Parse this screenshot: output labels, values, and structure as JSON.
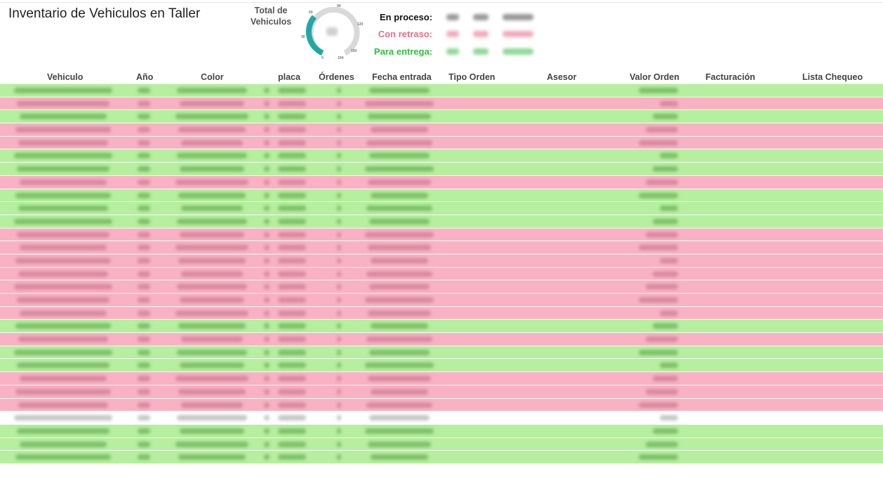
{
  "title": "Inventario de Vehiculos en Taller",
  "total_label": "Total de Vehiculos",
  "gauge": {
    "min_label": "0",
    "ticks": [
      "30",
      "60",
      "90",
      "120",
      "150"
    ],
    "max_label": "164",
    "accent_color": "#1fa9a4",
    "track_color": "#d9d9d9"
  },
  "summary": [
    {
      "label": "En proceso:",
      "color": "#111111"
    },
    {
      "label": "Con retraso:",
      "color": "#f06a86"
    },
    {
      "label": "Para entrega:",
      "color": "#2cc23a"
    }
  ],
  "columns": [
    "Vehiculo",
    "Año",
    "Color",
    "placa",
    "Órdenes",
    "Fecha entrada",
    "Tipo Orden",
    "Asesor",
    "Valor Orden",
    "Facturación",
    "Lista Chequeo"
  ],
  "row_status": [
    "green",
    "red",
    "green",
    "red",
    "red",
    "green",
    "green",
    "red",
    "green",
    "green",
    "green",
    "red",
    "red",
    "red",
    "red",
    "red",
    "red",
    "red",
    "green",
    "red",
    "green",
    "green",
    "red",
    "red",
    "red",
    "white",
    "green",
    "green",
    "green"
  ],
  "colors": {
    "green_row": "#b6ef9f",
    "red_row": "#f9b2c4"
  }
}
